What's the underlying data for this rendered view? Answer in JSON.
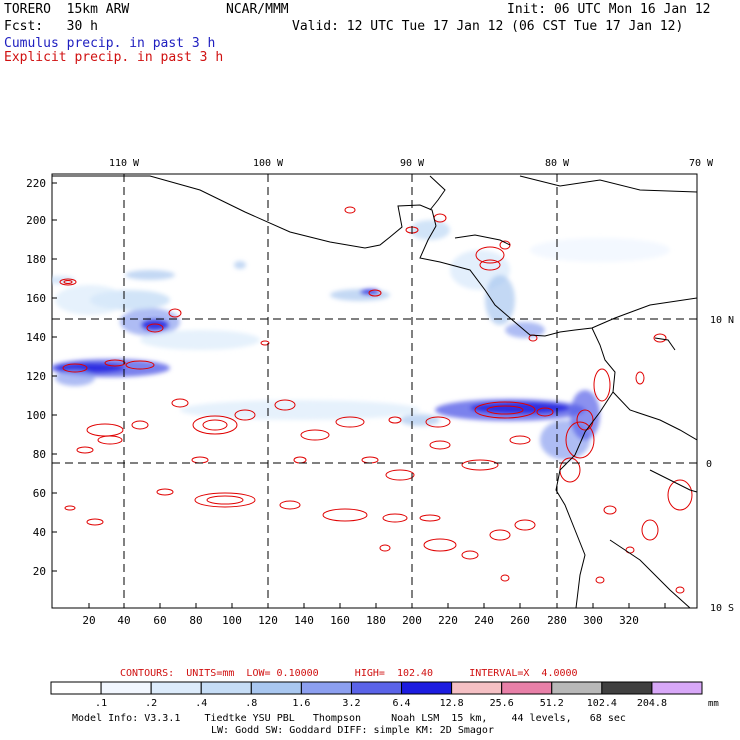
{
  "header": {
    "model": "TORERO  15km ARW",
    "org": "NCAR/MMM",
    "init": "Init: 06 UTC Mon 16 Jan 12",
    "fcst": "Fcst:   30 h",
    "valid": "Valid: 12 UTC Tue 17 Jan 12 (06 CST Tue 17 Jan 12)",
    "legend_cumulus": "Cumulus precip. in past 3 h",
    "legend_explicit": "Explicit precip. in past 3 h"
  },
  "axes": {
    "top_lon_labels": [
      "110 W",
      "100 W",
      "90 W",
      "80 W",
      "70 W"
    ],
    "right_lat_labels": [
      "10 N",
      "0",
      "10 S"
    ],
    "left_ticks": [
      "220",
      "200",
      "180",
      "160",
      "140",
      "120",
      "100",
      "80",
      "60",
      "40",
      "20"
    ],
    "bottom_ticks": [
      "20",
      "40",
      "60",
      "80",
      "100",
      "120",
      "140",
      "160",
      "180",
      "200",
      "220",
      "240",
      "260",
      "280",
      "300",
      "320"
    ]
  },
  "contour_info": {
    "text": "CONTOURS:  UNITS=mm  LOW= 0.10000      HIGH=  102.40      INTERVAL=X  4.0000"
  },
  "colorbar": {
    "unit": "mm",
    "labels": [
      ".1",
      ".2",
      ".4",
      ".8",
      "1.6",
      "3.2",
      "6.4",
      "12.8",
      "25.6",
      "51.2",
      "102.4",
      "204.8"
    ],
    "colors": [
      "#ffffff",
      "#f2f7ff",
      "#dcebfb",
      "#c6ddf6",
      "#a9c7f0",
      "#8c9ff0",
      "#5a63e8",
      "#1c1ce0",
      "#f5c0c4",
      "#e880a8",
      "#b8b8b8",
      "#404040",
      "#d8a8f8"
    ]
  },
  "footer": {
    "line1": "Model Info: V3.3.1    Tiedtke YSU PBL   Thompson     Noah LSM  15 km,    44 levels,   68 sec",
    "line2": "LW: Godd SW: Goddard DIFF: simple KM: 2D Smagor"
  }
}
